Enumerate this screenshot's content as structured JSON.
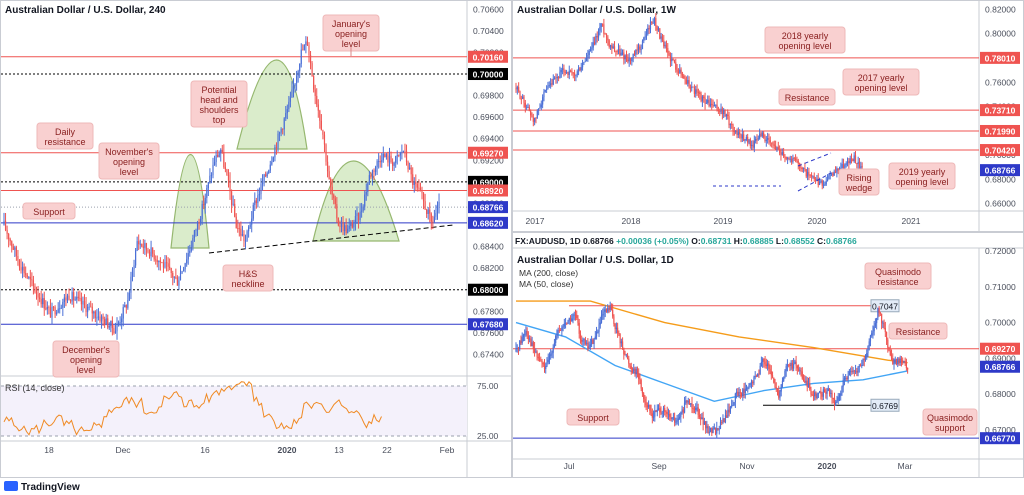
{
  "branding": {
    "name": "TradingView"
  },
  "colors": {
    "up": "#4a6fd6",
    "down": "#ef5350",
    "res": "#ef5350",
    "sup": "#2e39c8",
    "ma200": "#f59c1a",
    "ma50": "#42a5f5",
    "rsi": "#f08a24",
    "shape": "#d6ebc6",
    "note_bg": "#f9d0d0",
    "note_fg": "#8a2020"
  },
  "chart_data": [
    {
      "type": "candlestick",
      "title": "Australian Dollar / U.S. Dollar, 240",
      "x_ticks": [
        "18",
        "Dec",
        "16",
        "2020",
        "13",
        "22",
        "Feb"
      ],
      "ylim": [
        0.672,
        0.7064
      ],
      "y_ticks": [
        "0.70600",
        "0.70400",
        "0.70200",
        "0.70000",
        "0.69800",
        "0.69600",
        "0.69400",
        "0.69200",
        "0.69000",
        "0.68800",
        "0.68600",
        "0.68400",
        "0.68200",
        "0.68000",
        "0.67800",
        "0.67600",
        "0.67400"
      ],
      "levels": [
        {
          "label": "0.70160",
          "value": 0.7016,
          "kind": "resistance"
        },
        {
          "label": "0.70000",
          "value": 0.7,
          "kind": "round"
        },
        {
          "label": "0.69270",
          "value": 0.6927,
          "kind": "resistance"
        },
        {
          "label": "0.69000",
          "value": 0.69,
          "kind": "round"
        },
        {
          "label": "0.68920",
          "value": 0.6892,
          "kind": "resistance"
        },
        {
          "label": "0.68766",
          "value": 0.68766,
          "kind": "price"
        },
        {
          "label": "0.68620",
          "value": 0.6862,
          "kind": "support"
        },
        {
          "label": "0.68000",
          "value": 0.68,
          "kind": "round"
        },
        {
          "label": "0.67680",
          "value": 0.6768,
          "kind": "support"
        }
      ],
      "path": [
        [
          0,
          0.686
        ],
        [
          10,
          0.6825
        ],
        [
          20,
          0.68
        ],
        [
          30,
          0.6778
        ],
        [
          42,
          0.6795
        ],
        [
          55,
          0.6782
        ],
        [
          66,
          0.677
        ],
        [
          72,
          0.6763
        ],
        [
          80,
          0.679
        ],
        [
          86,
          0.6845
        ],
        [
          95,
          0.6835
        ],
        [
          105,
          0.682
        ],
        [
          112,
          0.6808
        ],
        [
          120,
          0.6838
        ],
        [
          128,
          0.6875
        ],
        [
          136,
          0.692
        ],
        [
          140,
          0.693
        ],
        [
          146,
          0.689
        ],
        [
          150,
          0.686
        ],
        [
          156,
          0.6845
        ],
        [
          162,
          0.688
        ],
        [
          170,
          0.691
        ],
        [
          178,
          0.6945
        ],
        [
          185,
          0.6975
        ],
        [
          192,
          0.702
        ],
        [
          196,
          0.703
        ],
        [
          200,
          0.699
        ],
        [
          206,
          0.6945
        ],
        [
          210,
          0.69
        ],
        [
          216,
          0.6862
        ],
        [
          222,
          0.6855
        ],
        [
          230,
          0.687
        ],
        [
          236,
          0.6905
        ],
        [
          244,
          0.6925
        ],
        [
          252,
          0.6918
        ],
        [
          258,
          0.693
        ],
        [
          264,
          0.69
        ],
        [
          270,
          0.6885
        ],
        [
          276,
          0.6862
        ],
        [
          281,
          0.68766
        ]
      ],
      "rsi": {
        "label": "RSI (14, close)",
        "ylim": [
          20,
          82
        ],
        "y_ticks": [
          "75.00",
          "25.00"
        ],
        "values": [
          40,
          35,
          30,
          32,
          38,
          42,
          36,
          30,
          28,
          34,
          48,
          55,
          60,
          58,
          50,
          52,
          62,
          66,
          58,
          55,
          62,
          70,
          74,
          78,
          80,
          60,
          45,
          35,
          34,
          40,
          55,
          60,
          52,
          58,
          50,
          46,
          38,
          42
        ]
      },
      "annotations": [
        {
          "text": "January's opening level"
        },
        {
          "text": "Potential head and shoulders top"
        },
        {
          "text": "Daily resistance"
        },
        {
          "text": "November's opening level"
        },
        {
          "text": "Support"
        },
        {
          "text": "H&S neckline"
        },
        {
          "text": "December's opening level"
        }
      ]
    },
    {
      "type": "candlestick",
      "title": "Australian Dollar / U.S. Dollar, 1W",
      "x_ticks": [
        "2017",
        "2018",
        "2019",
        "2020",
        "2021"
      ],
      "ylim": [
        0.654,
        0.822
      ],
      "y_ticks": [
        "0.82000",
        "0.80000",
        "0.78000",
        "0.76000",
        "0.74000",
        "0.72000",
        "0.70000",
        "0.68000",
        "0.66000"
      ],
      "levels": [
        {
          "label": "0.78010",
          "value": 0.7801,
          "kind": "resistance"
        },
        {
          "label": "0.73710",
          "value": 0.7371,
          "kind": "resistance"
        },
        {
          "label": "0.71990",
          "value": 0.7199,
          "kind": "resistance"
        },
        {
          "label": "0.70420",
          "value": 0.7042,
          "kind": "resistance"
        },
        {
          "label": "0.68766",
          "value": 0.68766,
          "kind": "price"
        }
      ],
      "path": [
        [
          0,
          0.755
        ],
        [
          8,
          0.74
        ],
        [
          14,
          0.728
        ],
        [
          20,
          0.748
        ],
        [
          28,
          0.76
        ],
        [
          36,
          0.77
        ],
        [
          44,
          0.765
        ],
        [
          52,
          0.778
        ],
        [
          58,
          0.79
        ],
        [
          64,
          0.808
        ],
        [
          70,
          0.792
        ],
        [
          78,
          0.784
        ],
        [
          86,
          0.778
        ],
        [
          94,
          0.79
        ],
        [
          100,
          0.806
        ],
        [
          104,
          0.812
        ],
        [
          110,
          0.792
        ],
        [
          116,
          0.78
        ],
        [
          122,
          0.77
        ],
        [
          130,
          0.758
        ],
        [
          140,
          0.746
        ],
        [
          148,
          0.74
        ],
        [
          156,
          0.735
        ],
        [
          164,
          0.72
        ],
        [
          172,
          0.714
        ],
        [
          178,
          0.708
        ],
        [
          184,
          0.718
        ],
        [
          190,
          0.71
        ],
        [
          196,
          0.706
        ],
        [
          204,
          0.698
        ],
        [
          212,
          0.694
        ],
        [
          218,
          0.685
        ],
        [
          224,
          0.679
        ],
        [
          230,
          0.676
        ],
        [
          236,
          0.682
        ],
        [
          242,
          0.689
        ],
        [
          248,
          0.693
        ],
        [
          254,
          0.698
        ],
        [
          260,
          0.6877
        ]
      ],
      "annotations": [
        {
          "text": "2018 yearly opening level"
        },
        {
          "text": "2017 yearly opening level"
        },
        {
          "text": "Resistance"
        },
        {
          "text": "Rising wedge"
        },
        {
          "text": "2019 yearly opening level"
        }
      ]
    },
    {
      "type": "candlestick",
      "title": "Australian Dollar / U.S. Dollar, 1D",
      "header": {
        "symbol": "FX:AUDUSD, 1D",
        "last": "0.68766",
        "change": "+0.00036 (+0.05%)",
        "open": "0.68731",
        "high": "0.68885",
        "low": "0.68552",
        "close": "0.68766"
      },
      "x_ticks": [
        "Jul",
        "Sep",
        "Nov",
        "2020",
        "Mar"
      ],
      "ylim": [
        0.663,
        0.72
      ],
      "y_ticks": [
        "0.72000",
        "0.71000",
        "0.70000",
        "0.69000",
        "0.68000",
        "0.67000"
      ],
      "levels": [
        {
          "label": "0.70470",
          "value": 0.7047,
          "kind": "quasimodo-resistance",
          "tag": "0.7047"
        },
        {
          "label": "0.69270",
          "value": 0.6927,
          "kind": "resistance"
        },
        {
          "label": "0.68766",
          "value": 0.68766,
          "kind": "price"
        },
        {
          "label": "0.67690",
          "value": 0.6769,
          "kind": "quasimodo-support",
          "tag": "0.6769"
        },
        {
          "label": "0.66770",
          "value": 0.6677,
          "kind": "support"
        }
      ],
      "path": [
        [
          0,
          0.692
        ],
        [
          8,
          0.698
        ],
        [
          16,
          0.691
        ],
        [
          24,
          0.687
        ],
        [
          32,
          0.696
        ],
        [
          40,
          0.7
        ],
        [
          48,
          0.702
        ],
        [
          52,
          0.696
        ],
        [
          58,
          0.693
        ],
        [
          64,
          0.696
        ],
        [
          70,
          0.702
        ],
        [
          76,
          0.704
        ],
        [
          80,
          0.699
        ],
        [
          86,
          0.693
        ],
        [
          92,
          0.688
        ],
        [
          98,
          0.686
        ],
        [
          104,
          0.678
        ],
        [
          110,
          0.674
        ],
        [
          116,
          0.676
        ],
        [
          122,
          0.674
        ],
        [
          130,
          0.672
        ],
        [
          138,
          0.678
        ],
        [
          146,
          0.676
        ],
        [
          154,
          0.67
        ],
        [
          162,
          0.67
        ],
        [
          170,
          0.674
        ],
        [
          178,
          0.68
        ],
        [
          186,
          0.681
        ],
        [
          194,
          0.685
        ],
        [
          200,
          0.69
        ],
        [
          206,
          0.685
        ],
        [
          212,
          0.68
        ],
        [
          218,
          0.688
        ],
        [
          226,
          0.688
        ],
        [
          234,
          0.683
        ],
        [
          240,
          0.68
        ],
        [
          246,
          0.68
        ],
        [
          252,
          0.681
        ],
        [
          258,
          0.677
        ],
        [
          266,
          0.685
        ],
        [
          274,
          0.686
        ],
        [
          282,
          0.69
        ],
        [
          288,
          0.698
        ],
        [
          292,
          0.703
        ],
        [
          296,
          0.7
        ],
        [
          300,
          0.693
        ],
        [
          304,
          0.688
        ],
        [
          310,
          0.69
        ],
        [
          316,
          0.6877
        ]
      ],
      "ma200": {
        "label": "MA (200, close)",
        "points": [
          [
            0,
            0.706
          ],
          [
            60,
            0.706
          ],
          [
            120,
            0.7
          ],
          [
            180,
            0.696
          ],
          [
            240,
            0.693
          ],
          [
            300,
            0.6895
          ],
          [
            316,
            0.6888
          ]
        ]
      },
      "ma50": {
        "label": "MA (50, close)",
        "points": [
          [
            0,
            0.7
          ],
          [
            40,
            0.696
          ],
          [
            80,
            0.688
          ],
          [
            120,
            0.683
          ],
          [
            160,
            0.678
          ],
          [
            200,
            0.681
          ],
          [
            240,
            0.683
          ],
          [
            280,
            0.684
          ],
          [
            316,
            0.6865
          ]
        ]
      },
      "annotations": [
        {
          "text": "Quasimodo resistance"
        },
        {
          "text": "Resistance"
        },
        {
          "text": "Support"
        },
        {
          "text": "Quasimodo support"
        }
      ]
    }
  ]
}
